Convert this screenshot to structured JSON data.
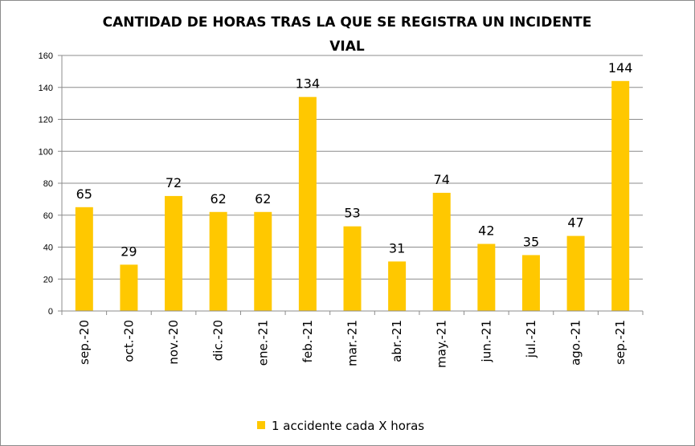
{
  "chart_data": {
    "type": "bar",
    "title_lines": [
      "CANTIDAD DE HORAS TRAS LA QUE SE REGISTRA UN INCIDENTE",
      "VIAL"
    ],
    "categories": [
      "sep.-20",
      "oct.-20",
      "nov.-20",
      "dic.-20",
      "ene.-21",
      "feb.-21",
      "mar.-21",
      "abr.-21",
      "may.-21",
      "jun.-21",
      "jul.-21",
      "ago.-21",
      "sep.-21"
    ],
    "series": [
      {
        "name": "1 accidente cada X horas",
        "color": "#FFC800",
        "values": [
          65,
          29,
          72,
          62,
          62,
          134,
          53,
          31,
          74,
          42,
          35,
          47,
          144
        ]
      }
    ],
    "ylim": [
      0,
      160
    ],
    "yticks": [
      0,
      20,
      40,
      60,
      80,
      100,
      120,
      140,
      160
    ],
    "grid": true,
    "legend_position": "bottom",
    "data_labels": true
  }
}
